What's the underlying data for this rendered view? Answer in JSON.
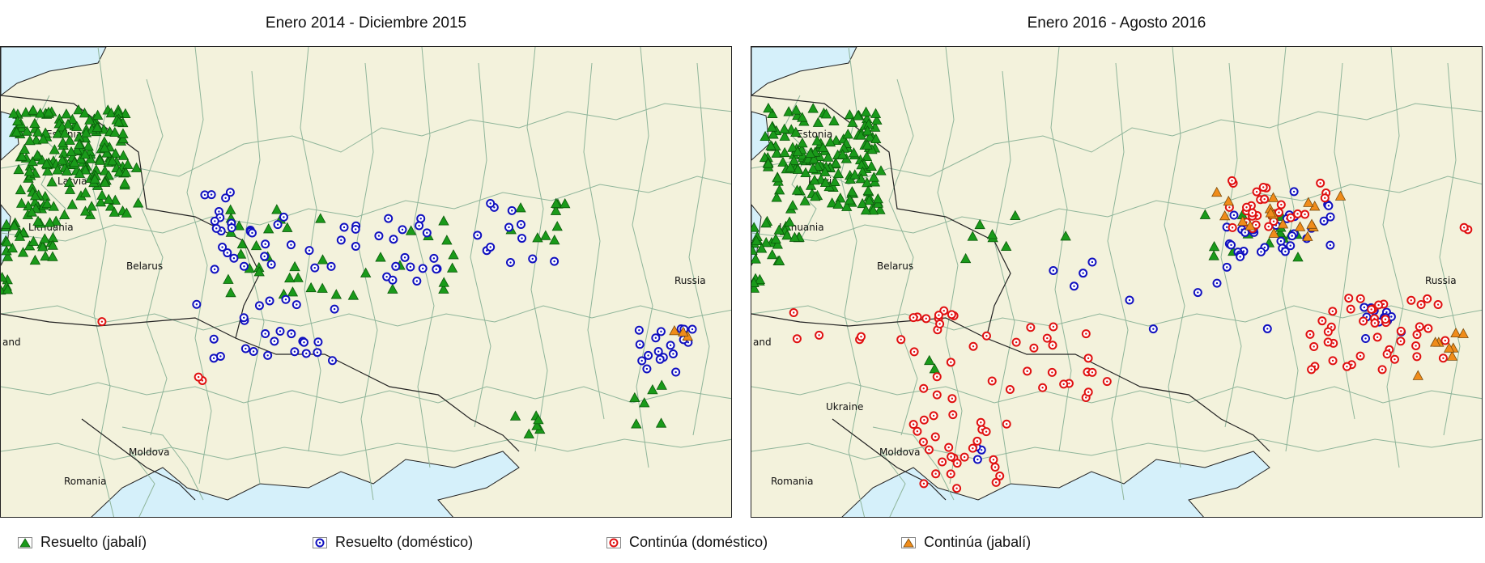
{
  "panels": [
    {
      "title": "Enero 2014 - Diciembre 2015",
      "labels": [
        "Estonia",
        "Latvia",
        "Lithuania",
        "Belarus",
        "Russia",
        "Moldova",
        "Romania",
        "and"
      ]
    },
    {
      "title": "Enero 2016 - Agosto 2016",
      "labels": [
        "Estonia",
        "Latvia",
        "Lithuania",
        "Belarus",
        "Russia",
        "Ukraine",
        "Moldova",
        "Romania",
        "and"
      ]
    }
  ],
  "legend": [
    {
      "label": "Resuelto (jabalí)",
      "symbol": "green-triangle",
      "color": "#1a9a1a"
    },
    {
      "label": "Resuelto (doméstico)",
      "symbol": "blue-circle",
      "color": "#1010c0"
    },
    {
      "label": "Continúa (doméstico)",
      "symbol": "red-circle",
      "color": "#e01010"
    },
    {
      "label": "Continúa (jabalí)",
      "symbol": "orange-triangle",
      "color": "#f08c1a"
    }
  ],
  "colors": {
    "land": "#f3f2dc",
    "water": "#d5f0fa",
    "border": "#8fb59a",
    "frame": "#222222"
  }
}
